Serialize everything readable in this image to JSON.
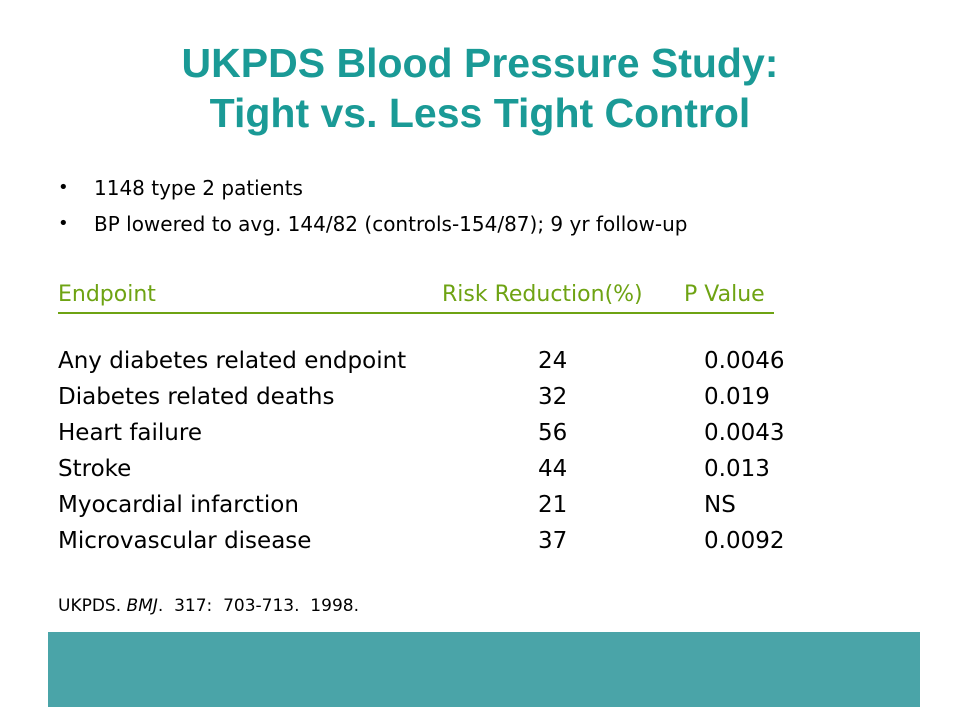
{
  "title": {
    "line1": "UKPDS Blood Pressure Study:",
    "line2": "Tight vs. Less Tight Control"
  },
  "bullets": [
    "1148 type 2 patients",
    "BP lowered to avg. 144/82 (controls-154/87); 9 yr follow-up"
  ],
  "table": {
    "headers": {
      "endpoint": "Endpoint",
      "risk": "Risk Reduction(%)",
      "p": "P Value"
    },
    "rows": [
      {
        "endpoint": "Any diabetes related endpoint",
        "risk": "24",
        "p": "0.0046"
      },
      {
        "endpoint": "Diabetes related deaths",
        "risk": "32",
        "p": "0.019"
      },
      {
        "endpoint": "Heart failure",
        "risk": "56",
        "p": "0.0043"
      },
      {
        "endpoint": "Stroke",
        "risk": "44",
        "p": "0.013"
      },
      {
        "endpoint": "Myocardial infarction",
        "risk": "21",
        "p": "NS"
      },
      {
        "endpoint": "Microvascular disease",
        "risk": "37",
        "p": "0.0092"
      }
    ]
  },
  "citation": {
    "author": "UKPDS. ",
    "journal": "BMJ",
    "rest": ".  317:  703-713.  1998."
  },
  "colors": {
    "title": "#1a9a96",
    "header": "#6ea313",
    "footer_band": "#4aa4a8"
  }
}
